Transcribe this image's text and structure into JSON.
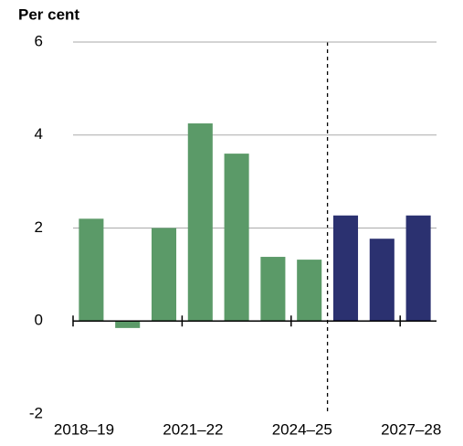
{
  "chart_data": {
    "type": "bar",
    "y_label": "Per cent",
    "categories": [
      "2018–19",
      null,
      null,
      "2021–22",
      null,
      null,
      "2024–25",
      null,
      null,
      "2027–28"
    ],
    "values": [
      2.2,
      -0.15,
      2.0,
      4.25,
      3.6,
      1.38,
      1.32,
      2.27,
      1.77,
      2.27
    ],
    "colors": [
      "#5b9a68",
      "#5b9a68",
      "#5b9a68",
      "#5b9a68",
      "#5b9a68",
      "#5b9a68",
      "#5b9a68",
      "#2b3170",
      "#2b3170",
      "#2b3170"
    ],
    "ylim": [
      -2,
      6
    ],
    "yticks": [
      -2,
      0,
      2,
      4,
      6
    ],
    "grid": true
  }
}
